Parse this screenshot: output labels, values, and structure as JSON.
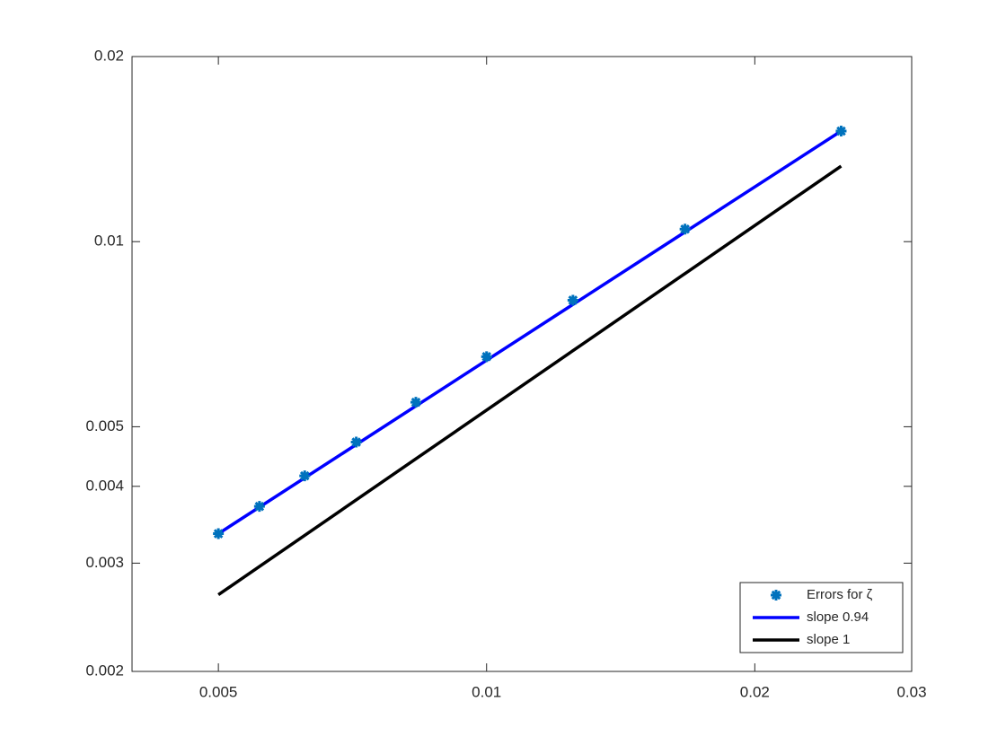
{
  "chart_data": {
    "type": "line",
    "xscale": "log",
    "yscale": "log",
    "xlim": [
      0.004,
      0.03
    ],
    "ylim": [
      0.002,
      0.02
    ],
    "xticks": [
      0.005,
      0.01,
      0.02,
      0.03
    ],
    "yticks": [
      0.002,
      0.003,
      0.004,
      0.005,
      0.01,
      0.02
    ],
    "legend": "lower right",
    "series": [
      {
        "name": "Errors for ζ",
        "color": "#0072bd",
        "style": "markers",
        "x": [
          0.005,
          0.00556,
          0.00625,
          0.00714,
          0.00833,
          0.01,
          0.0125,
          0.0167,
          0.025
        ],
        "values": [
          0.00335,
          0.00371,
          0.00416,
          0.00472,
          0.00548,
          0.0065,
          0.00803,
          0.01048,
          0.01513
        ]
      },
      {
        "name": "slope 0.94",
        "color": "#0000ff",
        "style": "line",
        "x": [
          0.005,
          0.025
        ],
        "values": [
          0.00335,
          0.01513
        ]
      },
      {
        "name": "slope 1",
        "color": "#000000",
        "style": "line",
        "x": [
          0.005,
          0.025
        ],
        "values": [
          0.002665,
          0.01327
        ]
      }
    ]
  }
}
